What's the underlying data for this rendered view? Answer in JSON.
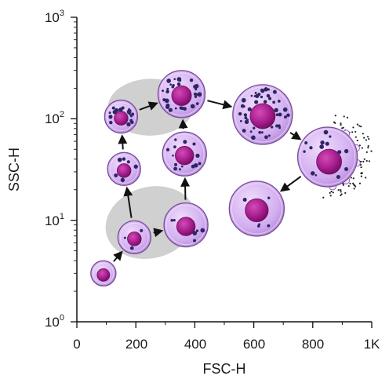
{
  "axes": {
    "x": {
      "label": "FSC-H",
      "ticks": [
        "0",
        "200",
        "400",
        "600",
        "800",
        "1K"
      ],
      "range": [
        0,
        1000
      ],
      "scale": "linear"
    },
    "y": {
      "label": "SSC-H",
      "ticks": [
        {
          "base": "10",
          "exp": "0",
          "value": 1
        },
        {
          "base": "10",
          "exp": "1",
          "value": 10
        },
        {
          "base": "10",
          "exp": "2",
          "value": 100
        },
        {
          "base": "10",
          "exp": "3",
          "value": 1000
        }
      ],
      "range": [
        1,
        1000
      ],
      "scale": "log"
    },
    "frame": "left-bottom"
  },
  "colors": {
    "cell_fill": "#d6b4ee",
    "cell_stroke": "#7a4f9c",
    "nucleus": "#a3198a",
    "nucleus_dark": "#6b0f5c",
    "granule": "#2d2566",
    "population_fill": "#c8c8c8"
  },
  "populations": [
    {
      "name": "upper-population",
      "cx": 250,
      "cy": 130,
      "rx_units": 145,
      "ry_log": 0.28,
      "angle": -1
    },
    {
      "name": "lower-population",
      "cx": 250,
      "cy": 9.5,
      "rx_units": 155,
      "ry_log": 0.35,
      "angle": -16
    }
  ],
  "cells": [
    {
      "x": 90,
      "y": 3.0,
      "size": 16,
      "granules": 0
    },
    {
      "x": 195,
      "y": 6.8,
      "size": 21,
      "granules": 3
    },
    {
      "x": 370,
      "y": 9.0,
      "size": 28,
      "granules": 6
    },
    {
      "x": 610,
      "y": 13,
      "size": 35,
      "granules": 5
    },
    {
      "x": 160,
      "y": 32,
      "size": 21,
      "granules": 7
    },
    {
      "x": 365,
      "y": 45,
      "size": 28,
      "granules": 14
    },
    {
      "x": 150,
      "y": 105,
      "size": 21,
      "granules": 18
    },
    {
      "x": 355,
      "y": 175,
      "size": 30,
      "granules": 30
    },
    {
      "x": 630,
      "y": 110,
      "size": 38,
      "granules": 45
    },
    {
      "x": 850,
      "y": 42,
      "size": 38,
      "granules": 14,
      "blebbing": true
    }
  ],
  "arrows": [
    {
      "from": 0,
      "to": 1
    },
    {
      "from": 1,
      "to": 2
    },
    {
      "from": 2,
      "to": 5
    },
    {
      "from": 5,
      "to": 7
    },
    {
      "from": 1,
      "to": 4
    },
    {
      "from": 4,
      "to": 6
    },
    {
      "from": 6,
      "to": 7
    },
    {
      "from": 7,
      "to": 8
    },
    {
      "from": 8,
      "to": 9
    },
    {
      "from": 9,
      "to": 3
    }
  ]
}
